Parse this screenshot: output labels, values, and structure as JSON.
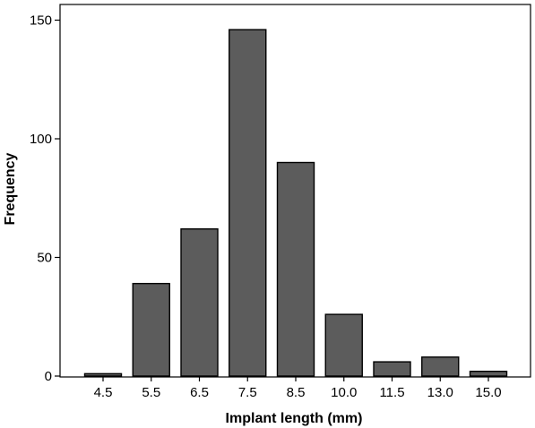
{
  "chart_data": {
    "type": "bar",
    "title": "",
    "xlabel": "Implant length (mm)",
    "ylabel": "Frequency",
    "categories": [
      "4.5",
      "5.5",
      "6.5",
      "7.5",
      "8.5",
      "10.0",
      "11.5",
      "13.0",
      "15.0"
    ],
    "values": [
      1,
      39,
      62,
      146,
      90,
      26,
      6,
      8,
      2
    ],
    "ylim": [
      0,
      150
    ],
    "yticks": [
      0,
      50,
      100,
      150
    ],
    "grid": false,
    "bar_color": "#5c5c5c"
  }
}
